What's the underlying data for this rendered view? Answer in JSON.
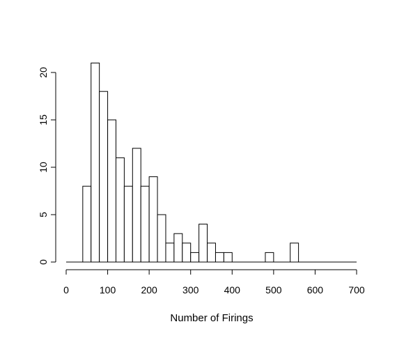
{
  "chart_data": {
    "type": "bar",
    "title": "",
    "xlabel": "Number of Firings",
    "ylabel": "",
    "bin_width": 20,
    "x_range": [
      0,
      700
    ],
    "xlim": [
      0,
      700
    ],
    "ylim": [
      0,
      21
    ],
    "x_ticks": [
      0,
      100,
      200,
      300,
      400,
      500,
      600,
      700
    ],
    "y_ticks": [
      0,
      5,
      10,
      15,
      20
    ],
    "bins": [
      {
        "start": 40,
        "end": 60,
        "count": 8
      },
      {
        "start": 60,
        "end": 80,
        "count": 21
      },
      {
        "start": 80,
        "end": 100,
        "count": 18
      },
      {
        "start": 100,
        "end": 120,
        "count": 15
      },
      {
        "start": 120,
        "end": 140,
        "count": 11
      },
      {
        "start": 140,
        "end": 160,
        "count": 8
      },
      {
        "start": 160,
        "end": 180,
        "count": 12
      },
      {
        "start": 180,
        "end": 200,
        "count": 8
      },
      {
        "start": 200,
        "end": 220,
        "count": 9
      },
      {
        "start": 220,
        "end": 240,
        "count": 5
      },
      {
        "start": 240,
        "end": 260,
        "count": 2
      },
      {
        "start": 260,
        "end": 280,
        "count": 3
      },
      {
        "start": 280,
        "end": 300,
        "count": 2
      },
      {
        "start": 300,
        "end": 320,
        "count": 1
      },
      {
        "start": 320,
        "end": 340,
        "count": 4
      },
      {
        "start": 340,
        "end": 360,
        "count": 2
      },
      {
        "start": 360,
        "end": 380,
        "count": 1
      },
      {
        "start": 380,
        "end": 400,
        "count": 1
      },
      {
        "start": 480,
        "end": 500,
        "count": 1
      },
      {
        "start": 540,
        "end": 560,
        "count": 2
      }
    ],
    "grid": false,
    "colors": {
      "bar_fill": "#ffffff",
      "bar_stroke": "#000000",
      "axis": "#000000"
    }
  }
}
